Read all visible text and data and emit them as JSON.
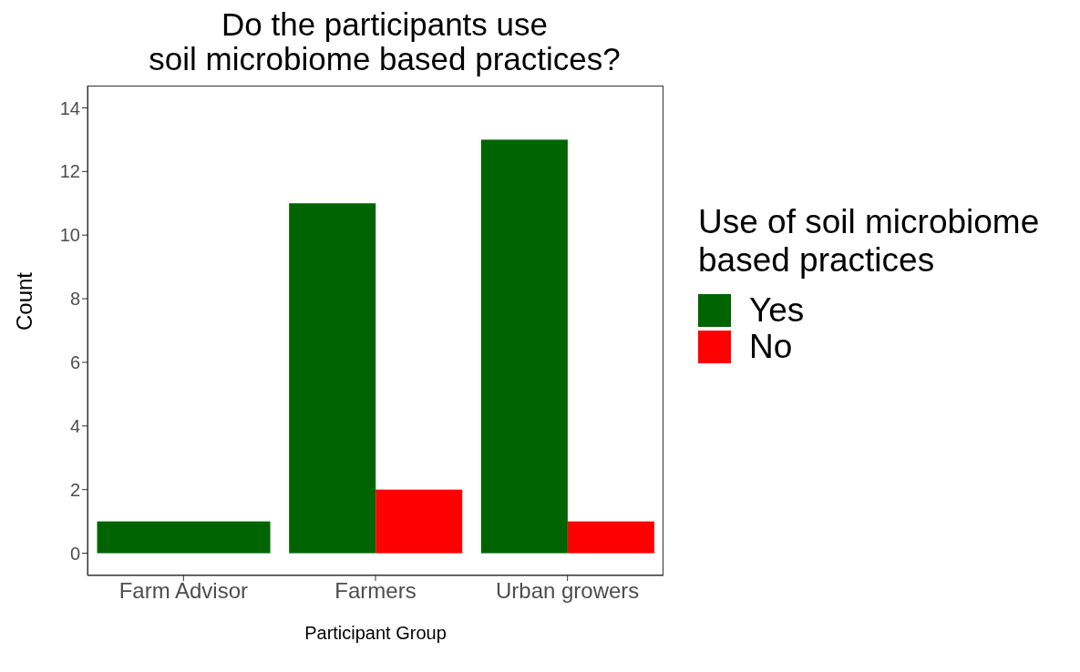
{
  "chart_data": {
    "type": "bar",
    "title": "Do the participants use\nsoil microbiome based practices?",
    "xlabel": "Participant Group",
    "ylabel": "Count",
    "legend_title": "Use of soil microbiome\nbased practices",
    "categories": [
      "Farm Advisor",
      "Farmers",
      "Urban growers"
    ],
    "series": [
      {
        "name": "Yes",
        "color": "#006400",
        "values": [
          1,
          11,
          13
        ]
      },
      {
        "name": "No",
        "color": "#ff0000",
        "values": [
          null,
          2,
          1
        ]
      }
    ],
    "ylim": [
      -0.7,
      14.7
    ],
    "yticks": [
      0,
      2,
      4,
      6,
      8,
      10,
      12,
      14
    ],
    "grid": false,
    "legend": "right"
  }
}
